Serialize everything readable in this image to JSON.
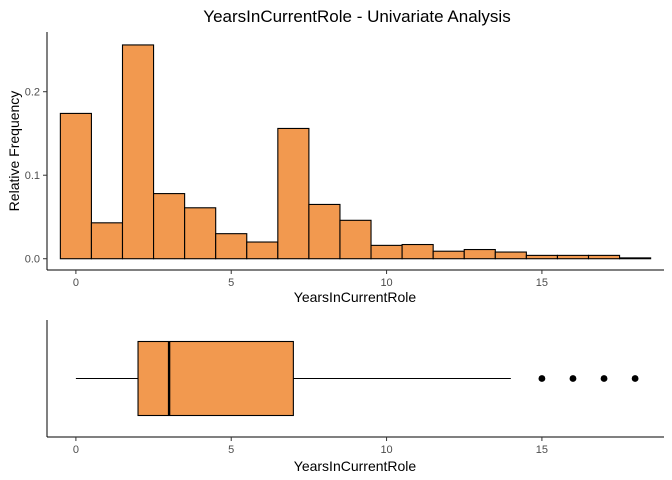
{
  "colors": {
    "fill": "#f2994f",
    "outline": "#000000"
  },
  "chart_data": [
    {
      "type": "bar",
      "title": "YearsInCurrentRole - Univariate Analysis",
      "xlabel": "YearsInCurrentRole",
      "ylabel": "Relative Frequency",
      "xlim": [
        -0.93,
        18.93
      ],
      "ylim": [
        -0.0135,
        0.2715
      ],
      "xticks": [
        0,
        5,
        10,
        15
      ],
      "xtick_labels": [
        "0",
        "5",
        "10",
        "15"
      ],
      "yticks": [
        0,
        0.1,
        0.2
      ],
      "ytick_labels": [
        "0.0",
        "0.1",
        "0.2"
      ],
      "bin_width": 1,
      "categories": [
        0,
        1,
        2,
        3,
        4,
        5,
        6,
        7,
        8,
        9,
        10,
        11,
        12,
        13,
        14,
        15,
        16,
        17,
        18
      ],
      "values": [
        0.174,
        0.043,
        0.256,
        0.078,
        0.061,
        0.03,
        0.02,
        0.156,
        0.065,
        0.046,
        0.016,
        0.017,
        0.009,
        0.011,
        0.008,
        0.004,
        0.004,
        0.004,
        0.001
      ],
      "grid": false
    },
    {
      "type": "boxplot",
      "xlabel": "YearsInCurrentRole",
      "xlim": [
        -0.93,
        18.93
      ],
      "xticks": [
        0,
        5,
        10,
        15
      ],
      "xtick_labels": [
        "0",
        "5",
        "10",
        "15"
      ],
      "whisker_low": 0,
      "q1": 2,
      "median": 3,
      "q3": 7,
      "whisker_high": 14,
      "outliers": [
        15,
        16,
        17,
        18
      ],
      "grid": false
    }
  ]
}
